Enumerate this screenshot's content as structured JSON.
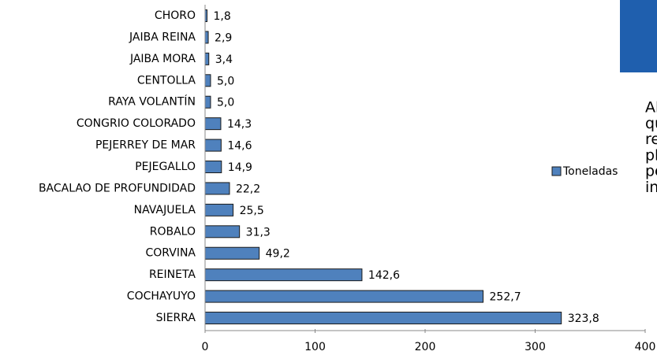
{
  "chart_data": {
    "type": "bar",
    "orientation": "horizontal",
    "categories": [
      "CHORO",
      "JAIBA REINA",
      "JAIBA MORA",
      "CENTOLLA",
      "RAYA VOLANTÍN",
      "CONGRIO COLORADO",
      "PEJERREY DE MAR",
      "PEJEGALLO",
      "BACALAO DE PROFUNDIDAD",
      "NAVAJUELA",
      "ROBALO",
      "CORVINA",
      "REINETA",
      "COCHAYUYO",
      "SIERRA"
    ],
    "series": [
      {
        "name": "Toneladas",
        "color": "#4f81bd",
        "values": [
          1.8,
          2.9,
          3.4,
          5.0,
          5.0,
          14.3,
          14.6,
          14.9,
          22.2,
          25.5,
          31.3,
          49.2,
          142.6,
          252.7,
          323.8
        ],
        "value_labels": [
          "1,8",
          "2,9",
          "3,4",
          "5,0",
          "5,0",
          "14,3",
          "14,6",
          "14,9",
          "22,2",
          "25,5",
          "31,3",
          "49,2",
          "142,6",
          "252,7",
          "323,8"
        ]
      }
    ],
    "xlim": [
      0,
      400
    ],
    "xticks": [
      0,
      100,
      200,
      300,
      400
    ],
    "legend": "right"
  },
  "side_text": [
    "Al",
    "qu",
    "re",
    "pl",
    "pe",
    "in"
  ]
}
